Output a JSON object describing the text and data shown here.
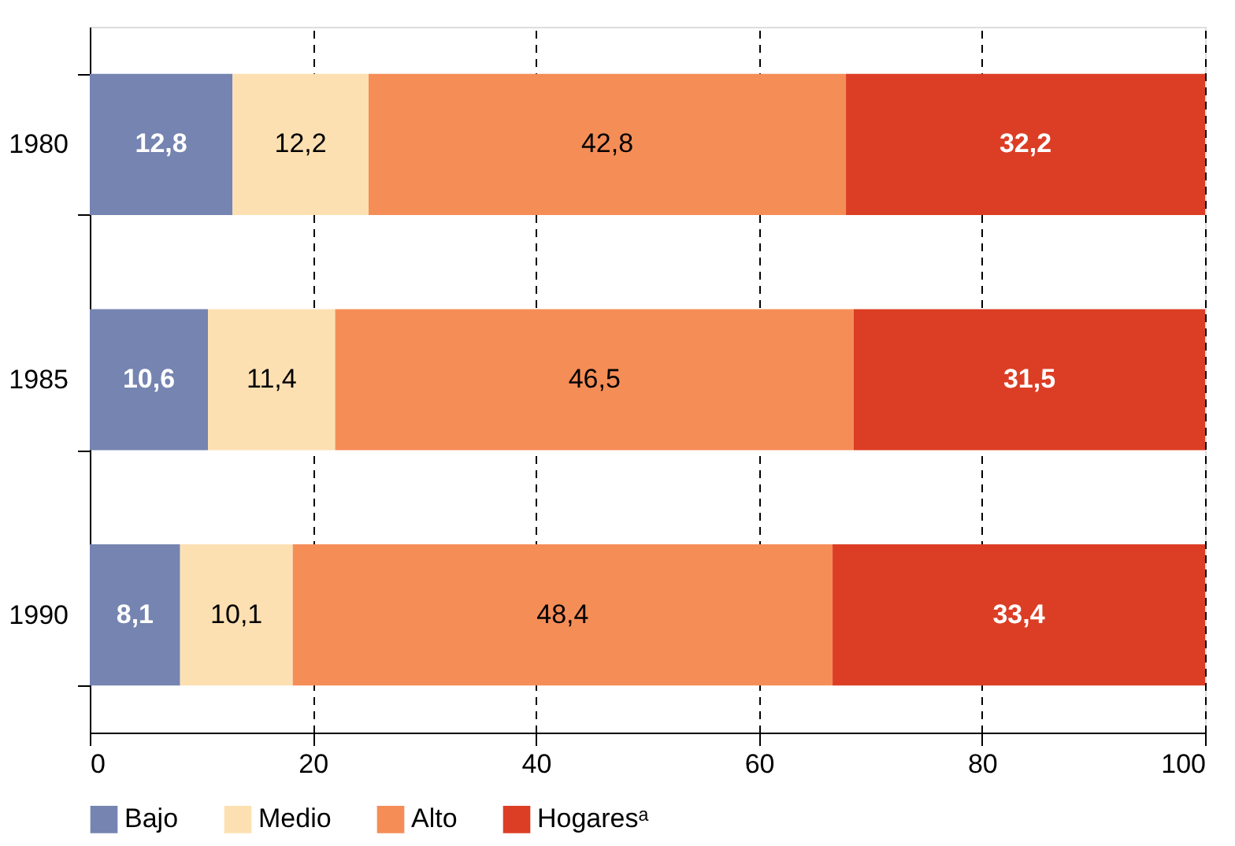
{
  "chart_data": {
    "type": "bar",
    "orientation": "horizontal",
    "stacked": true,
    "categories": [
      "1980",
      "1985",
      "1990"
    ],
    "series": [
      {
        "name": "Bajo",
        "color": "#7584b0",
        "values": [
          12.8,
          10.6,
          8.1
        ],
        "value_labels": [
          "12,8",
          "10,6",
          "8,1"
        ]
      },
      {
        "name": "Medio",
        "color": "#fde0b2",
        "values": [
          12.2,
          11.4,
          10.1
        ],
        "value_labels": [
          "12,2",
          "11,4",
          "10,1"
        ]
      },
      {
        "name": "Alto",
        "color": "#f58d57",
        "values": [
          42.8,
          46.5,
          48.4
        ],
        "value_labels": [
          "42,8",
          "46,5",
          "48,4"
        ]
      },
      {
        "name": "Hogaresᵃ",
        "color": "#dc3e25",
        "values": [
          32.2,
          31.5,
          33.4
        ],
        "value_labels": [
          "32,2",
          "31,5",
          "33,4"
        ]
      }
    ],
    "xlim": [
      0,
      100
    ],
    "xticks": [
      0,
      20,
      40,
      60,
      80,
      100
    ],
    "grid": "x",
    "legend": "bottom"
  }
}
